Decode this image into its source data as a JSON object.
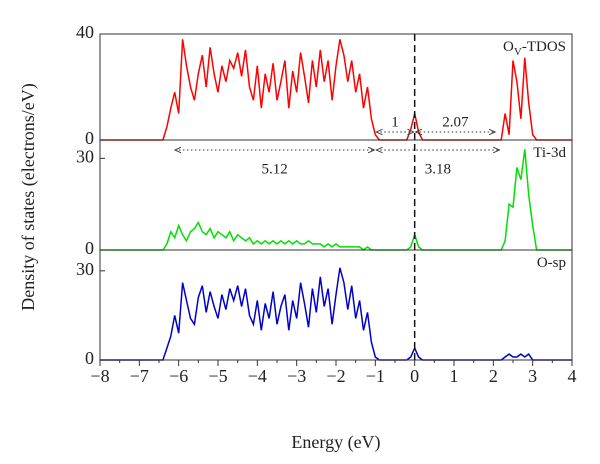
{
  "figure": {
    "xlabel": "Energy (eV)",
    "ylabel": "Density of states (electrons/eV)",
    "xlim": [
      -8,
      4
    ],
    "xticks": [
      {
        "value": -8,
        "label": "−8"
      },
      {
        "value": -7,
        "label": "−7"
      },
      {
        "value": -6,
        "label": "−6"
      },
      {
        "value": -5,
        "label": "−5"
      },
      {
        "value": -4,
        "label": "−4"
      },
      {
        "value": -3,
        "label": "−3"
      },
      {
        "value": -2,
        "label": "−2"
      },
      {
        "value": -1,
        "label": "−1"
      },
      0,
      1,
      2,
      3,
      4
    ],
    "vline": 0
  },
  "chart_data": [
    {
      "type": "line",
      "label": {
        "base": "O",
        "sub": "V",
        "rest": "-TDOS"
      },
      "ylim": [
        0,
        40
      ],
      "yticks": [
        0,
        40
      ],
      "x": [
        -8,
        -6.4,
        -6.3,
        -6.2,
        -6.1,
        -6.0,
        -5.9,
        -5.8,
        -5.7,
        -5.6,
        -5.5,
        -5.4,
        -5.3,
        -5.2,
        -5.1,
        -5.0,
        -4.9,
        -4.8,
        -4.7,
        -4.6,
        -4.5,
        -4.4,
        -4.3,
        -4.2,
        -4.1,
        -4.0,
        -3.9,
        -3.8,
        -3.7,
        -3.6,
        -3.5,
        -3.4,
        -3.3,
        -3.2,
        -3.1,
        -3.0,
        -2.9,
        -2.8,
        -2.7,
        -2.6,
        -2.5,
        -2.4,
        -2.3,
        -2.2,
        -2.1,
        -2.0,
        -1.9,
        -1.8,
        -1.7,
        -1.6,
        -1.5,
        -1.4,
        -1.3,
        -1.2,
        -1.1,
        -1.0,
        -0.9,
        -0.2,
        -0.1,
        0,
        0.1,
        0.2,
        2.1,
        2.2,
        2.3,
        2.4,
        2.5,
        2.6,
        2.7,
        2.8,
        2.9,
        3.0,
        3.1,
        4
      ],
      "series": [
        {
          "color": "#ff0000",
          "values": [
            0,
            0,
            5,
            12,
            18,
            10,
            38,
            28,
            20,
            15,
            25,
            32,
            20,
            35,
            25,
            18,
            28,
            22,
            30,
            27,
            33,
            24,
            34,
            20,
            15,
            28,
            12,
            25,
            18,
            29,
            15,
            22,
            30,
            12,
            26,
            18,
            33,
            24,
            14,
            30,
            20,
            34,
            22,
            30,
            15,
            28,
            38,
            32,
            22,
            30,
            18,
            25,
            12,
            20,
            8,
            2,
            0,
            0,
            4,
            10,
            3,
            0,
            0,
            0,
            10,
            2,
            30,
            22,
            8,
            31,
            14,
            2,
            0,
            0
          ]
        }
      ],
      "gaps": [
        {
          "label": "1",
          "from": -1,
          "to": 0
        },
        {
          "label": "2.07",
          "from": 0,
          "to": 2.07
        }
      ]
    },
    {
      "type": "line",
      "label": {
        "base": "Ti-3d"
      },
      "ylim": [
        0,
        36
      ],
      "yticks": [
        0,
        30
      ],
      "x": [
        -8,
        -6.4,
        -6.3,
        -6.2,
        -6.1,
        -6.0,
        -5.9,
        -5.8,
        -5.7,
        -5.6,
        -5.5,
        -5.4,
        -5.3,
        -5.2,
        -5.1,
        -5.0,
        -4.9,
        -4.8,
        -4.7,
        -4.6,
        -4.5,
        -4.4,
        -4.3,
        -4.2,
        -4.1,
        -4.0,
        -3.9,
        -3.8,
        -3.7,
        -3.6,
        -3.5,
        -3.4,
        -3.3,
        -3.2,
        -3.1,
        -3.0,
        -2.9,
        -2.8,
        -2.7,
        -2.6,
        -2.5,
        -2.4,
        -2.3,
        -2.2,
        -2.1,
        -2.0,
        -1.9,
        -1.8,
        -1.7,
        -1.6,
        -1.5,
        -1.4,
        -1.3,
        -1.2,
        -1.1,
        -1.0,
        -0.9,
        -0.2,
        -0.1,
        0,
        0.1,
        0.2,
        2.1,
        2.2,
        2.3,
        2.4,
        2.5,
        2.6,
        2.7,
        2.8,
        2.9,
        3.0,
        3.1,
        4
      ],
      "series": [
        {
          "color": "#00e000",
          "values": [
            0,
            0,
            2,
            6,
            4,
            8,
            5,
            3,
            6,
            7,
            9,
            6,
            5,
            7,
            4,
            6,
            5,
            4,
            6,
            3,
            5,
            4,
            3,
            4,
            2,
            3,
            2,
            3,
            2,
            3,
            2,
            3,
            2,
            3,
            2,
            3,
            2,
            2,
            3,
            2,
            2,
            2,
            1,
            2,
            1,
            2,
            1,
            1,
            1,
            1,
            1,
            1,
            0,
            1,
            0,
            0,
            0,
            0,
            1,
            5,
            1,
            0,
            0,
            0,
            3,
            15,
            14,
            27,
            23,
            33,
            18,
            8,
            0,
            0
          ]
        }
      ],
      "gaps": [
        {
          "label": "5.12",
          "from": -6.12,
          "to": -1
        },
        {
          "label": "3.18",
          "from": -1,
          "to": 2.18
        }
      ]
    },
    {
      "type": "line",
      "label": {
        "base": "O-sp"
      },
      "ylim": [
        0,
        37
      ],
      "yticks": [
        0,
        30
      ],
      "x": [
        -8,
        -6.4,
        -6.3,
        -6.2,
        -6.1,
        -6.0,
        -5.9,
        -5.8,
        -5.7,
        -5.6,
        -5.5,
        -5.4,
        -5.3,
        -5.2,
        -5.1,
        -5.0,
        -4.9,
        -4.8,
        -4.7,
        -4.6,
        -4.5,
        -4.4,
        -4.3,
        -4.2,
        -4.1,
        -4.0,
        -3.9,
        -3.8,
        -3.7,
        -3.6,
        -3.5,
        -3.4,
        -3.3,
        -3.2,
        -3.1,
        -3.0,
        -2.9,
        -2.8,
        -2.7,
        -2.6,
        -2.5,
        -2.4,
        -2.3,
        -2.2,
        -2.1,
        -2.0,
        -1.9,
        -1.8,
        -1.7,
        -1.6,
        -1.5,
        -1.4,
        -1.3,
        -1.2,
        -1.1,
        -1.0,
        -0.9,
        -0.2,
        -0.1,
        0,
        0.1,
        0.2,
        2.1,
        2.2,
        2.3,
        2.4,
        2.5,
        2.6,
        2.7,
        2.8,
        2.9,
        3.0,
        3.1,
        4
      ],
      "series": [
        {
          "color": "#0000cc",
          "values": [
            0,
            0,
            4,
            8,
            15,
            9,
            26,
            20,
            14,
            12,
            21,
            25,
            16,
            23,
            18,
            14,
            22,
            17,
            24,
            20,
            25,
            18,
            24,
            15,
            12,
            20,
            10,
            19,
            14,
            23,
            12,
            18,
            22,
            10,
            20,
            14,
            26,
            19,
            11,
            24,
            16,
            28,
            18,
            24,
            12,
            22,
            31,
            26,
            17,
            25,
            14,
            20,
            10,
            16,
            6,
            1,
            0,
            0,
            1,
            4,
            1,
            0,
            0,
            0,
            1,
            2,
            1,
            1,
            2,
            1,
            2,
            0,
            0,
            0
          ]
        }
      ]
    }
  ]
}
